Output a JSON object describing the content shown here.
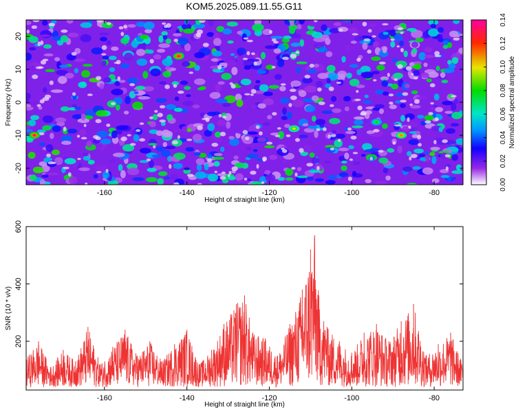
{
  "title": "KOM5.2025.089.11.55.G11",
  "chart_data": [
    {
      "type": "heatmap",
      "xlabel": "Height of straight line (km)",
      "ylabel": "Frequency (Hz)",
      "xlim": [
        -179,
        -73
      ],
      "ylim": [
        -25,
        25
      ],
      "xticks": [
        -160,
        -140,
        -120,
        -100,
        -80
      ],
      "yticks": [
        -20,
        -10,
        0,
        10,
        20
      ],
      "colorbar": {
        "label": "Normalized spectral amplitude",
        "range": [
          0,
          0.14
        ],
        "ticks": [
          "0.00",
          "0.02",
          "0.04",
          "0.06",
          "0.08",
          "0.10",
          "0.12",
          "0.14"
        ]
      },
      "peaks": [
        {
          "x": -177,
          "y": -10,
          "value": 0.13
        },
        {
          "x": -142,
          "y": 14,
          "value": 0.13
        },
        {
          "x": -88,
          "y": -10,
          "value": 0.11
        },
        {
          "x": -114,
          "y": -8,
          "value": 0.1
        },
        {
          "x": -94,
          "y": -6,
          "value": 0.08
        }
      ]
    },
    {
      "type": "line",
      "xlabel": "Height of straight line (km)",
      "ylabel": "SNR (10 * v/v)",
      "xlim": [
        -179,
        -73
      ],
      "ylim": [
        30,
        600
      ],
      "xticks": [
        -160,
        -140,
        -120,
        -100,
        -80
      ],
      "yticks": [
        200,
        400,
        600
      ],
      "series": [
        {
          "color": "#ee3333",
          "x": [
            -179,
            -176,
            -173,
            -170,
            -167,
            -164,
            -161,
            -158,
            -155,
            -152,
            -149,
            -146,
            -143,
            -140,
            -137,
            -134,
            -131,
            -128,
            -126,
            -124,
            -121,
            -118,
            -115,
            -112,
            -110,
            -109,
            -108,
            -106,
            -103,
            -100,
            -97,
            -94,
            -91,
            -88,
            -85,
            -82,
            -79,
            -76,
            -73
          ],
          "y": [
            140,
            200,
            110,
            170,
            130,
            250,
            120,
            180,
            240,
            150,
            200,
            130,
            190,
            240,
            120,
            170,
            260,
            330,
            360,
            230,
            210,
            150,
            260,
            380,
            520,
            570,
            360,
            250,
            200,
            160,
            230,
            260,
            200,
            270,
            330,
            150,
            190,
            230,
            120
          ]
        }
      ]
    }
  ]
}
